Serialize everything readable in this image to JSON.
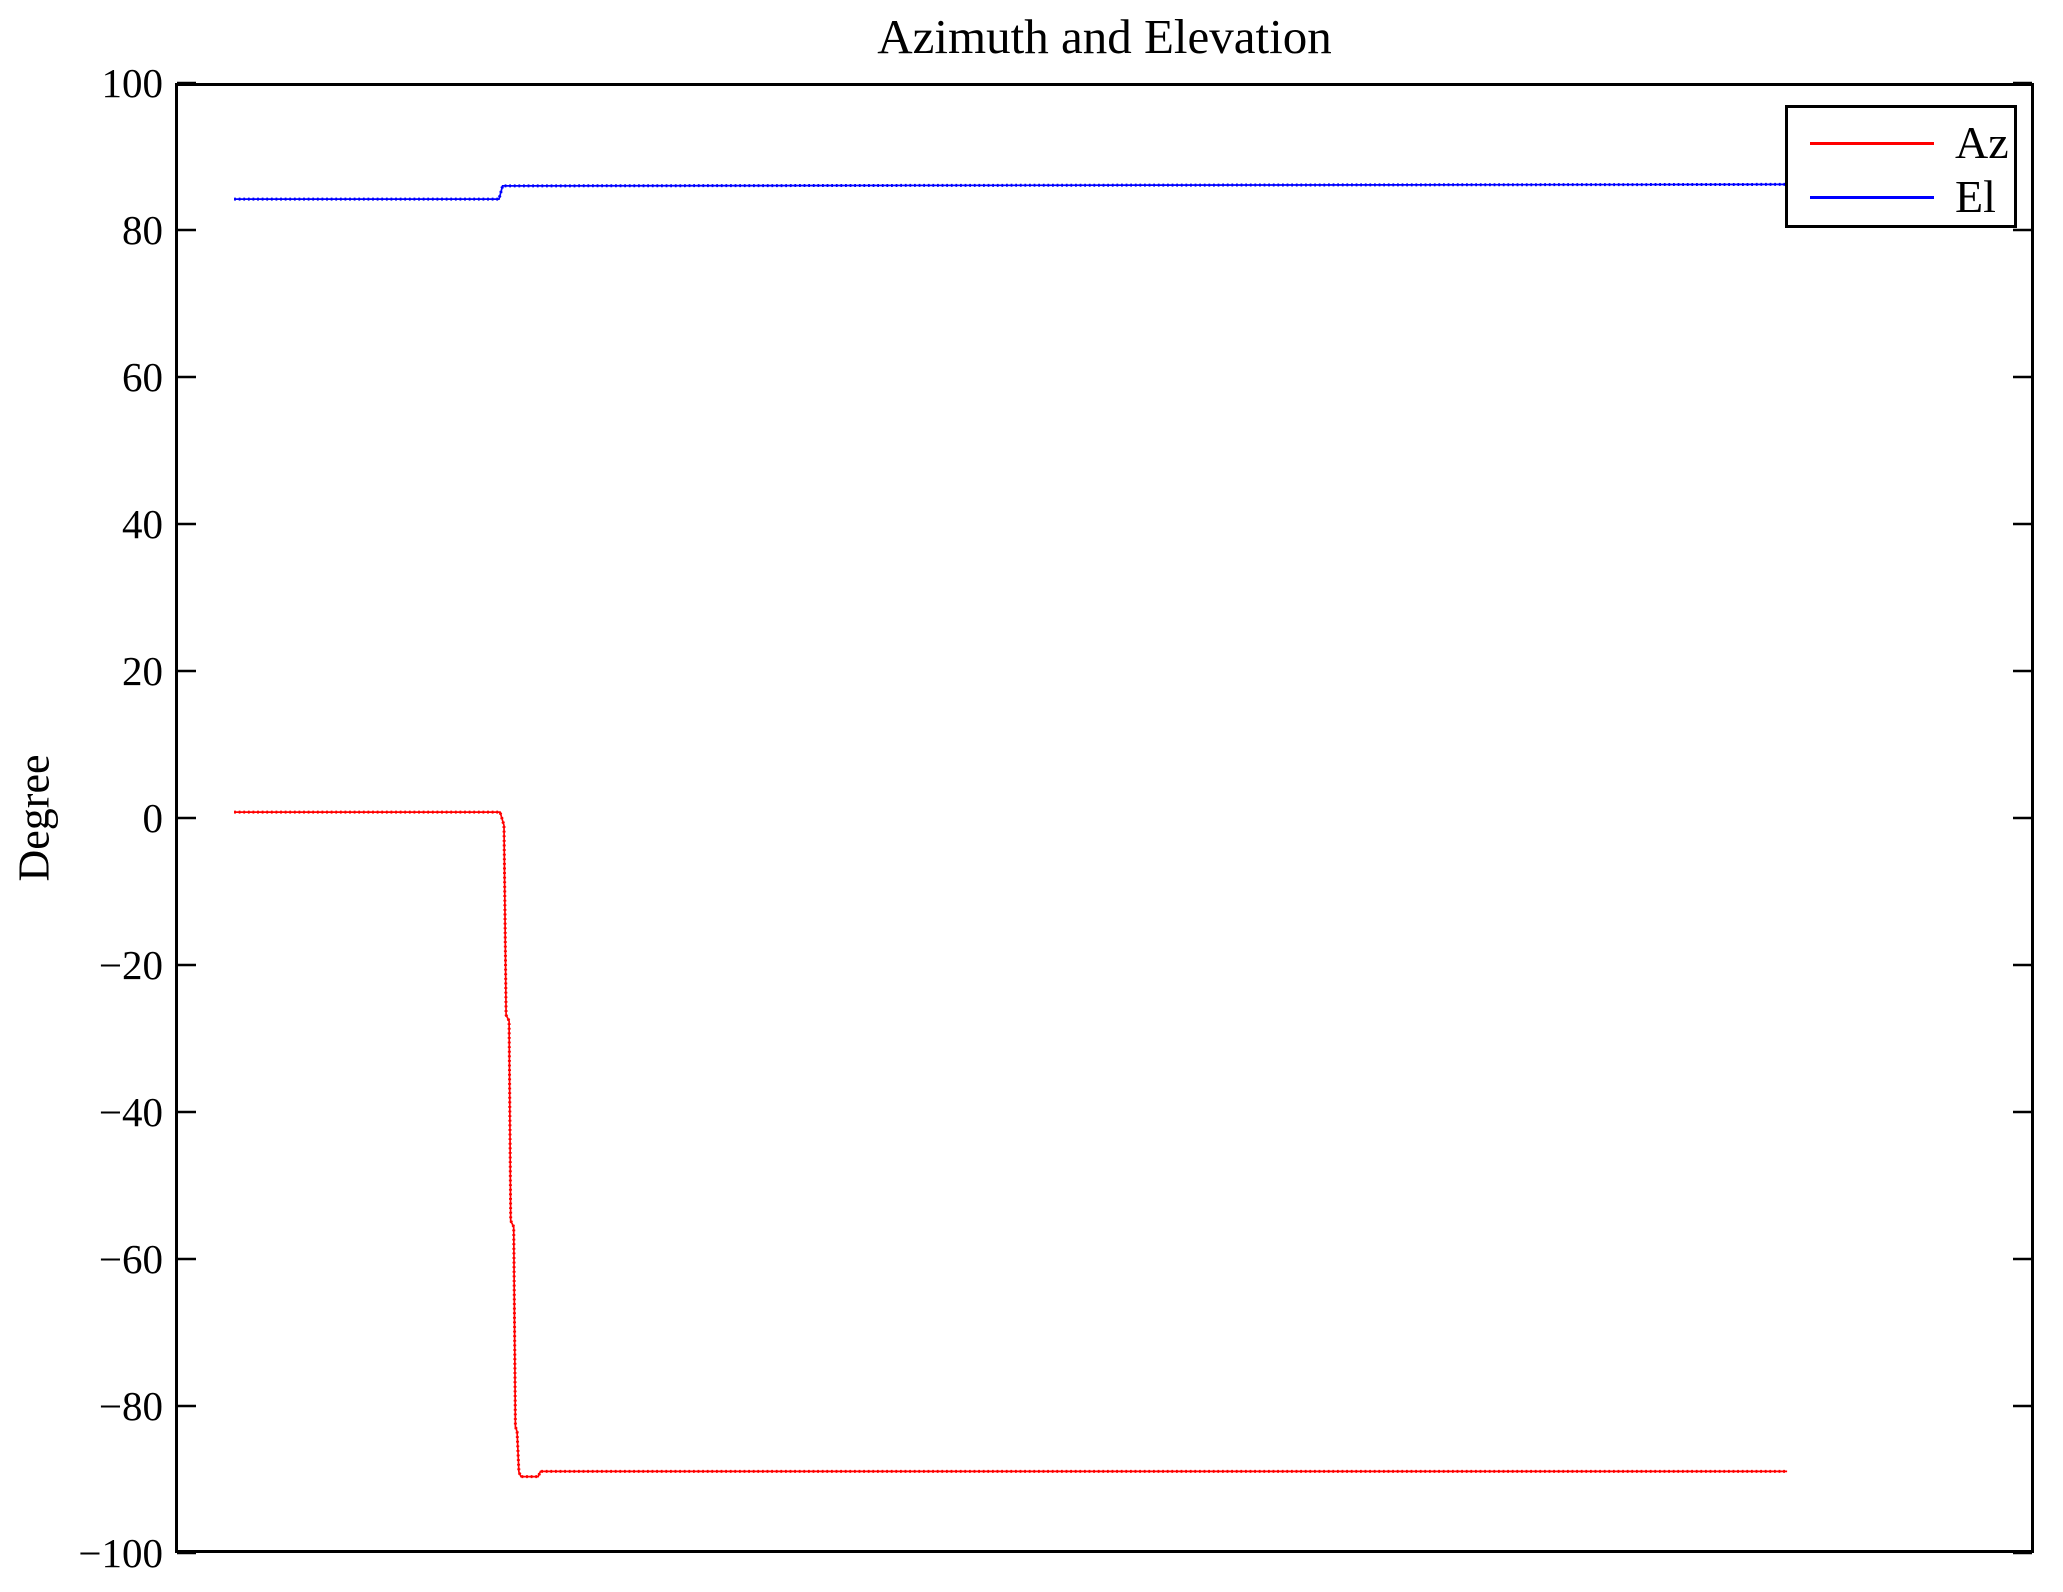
{
  "chart_data": {
    "type": "line",
    "title": "Azimuth and Elevation",
    "xlabel": "",
    "ylabel": "Degree",
    "ylim": [
      -100,
      100
    ],
    "xlim": [
      0,
      1
    ],
    "yticks": [
      100,
      80,
      60,
      40,
      20,
      0,
      -20,
      -40,
      -60,
      -80,
      -100
    ],
    "xticks": [],
    "grid": false,
    "background": "#ffffff",
    "axis_color": "#000000",
    "legend_position": "top-right",
    "series": [
      {
        "name": "Az",
        "color": "#ff0000",
        "points": [
          [
            0.0318,
            0.8
          ],
          [
            0.1749,
            0.8
          ],
          [
            0.177,
            -1.0
          ],
          [
            0.1781,
            -26.8
          ],
          [
            0.1797,
            -27.6
          ],
          [
            0.1806,
            -54.8
          ],
          [
            0.1822,
            -55.6
          ],
          [
            0.1831,
            -82.8
          ],
          [
            0.184,
            -83.5
          ],
          [
            0.185,
            -89.0
          ],
          [
            0.1861,
            -89.6
          ],
          [
            0.1953,
            -89.6
          ],
          [
            0.1966,
            -88.9
          ],
          [
            0.8672,
            -88.9
          ]
        ]
      },
      {
        "name": "El",
        "color": "#0000ff",
        "points": [
          [
            0.0318,
            84.2
          ],
          [
            0.1743,
            84.2
          ],
          [
            0.1762,
            86.0
          ],
          [
            0.8672,
            86.2
          ]
        ]
      }
    ]
  }
}
